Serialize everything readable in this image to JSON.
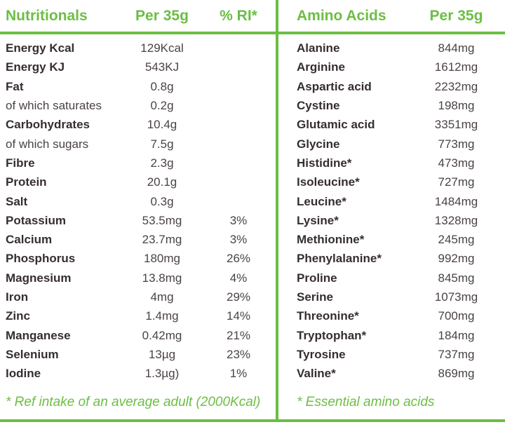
{
  "colors": {
    "accent_green": "#6cbe45",
    "label_text": "#362e2e",
    "value_text": "#4b4343"
  },
  "nutritionals": {
    "title": "Nutritionals",
    "columns": {
      "value": "Per 35g",
      "ri": "% RI*"
    },
    "rows": [
      {
        "label": "Energy Kcal",
        "value": "129Kcal",
        "ri": ""
      },
      {
        "label": "Energy KJ",
        "value": "543KJ",
        "ri": ""
      },
      {
        "label": "Fat",
        "value": "0.8g",
        "ri": ""
      },
      {
        "label": "of which saturates",
        "value": "0.2g",
        "ri": "",
        "muted": true
      },
      {
        "label": "Carbohydrates",
        "value": "10.4g",
        "ri": ""
      },
      {
        "label": "of which sugars",
        "value": "7.5g",
        "ri": "",
        "muted": true
      },
      {
        "label": "Fibre",
        "value": "2.3g",
        "ri": ""
      },
      {
        "label": "Protein",
        "value": "20.1g",
        "ri": ""
      },
      {
        "label": "Salt",
        "value": "0.3g",
        "ri": ""
      },
      {
        "label": "Potassium",
        "value": "53.5mg",
        "ri": "3%"
      },
      {
        "label": "Calcium",
        "value": "23.7mg",
        "ri": "3%"
      },
      {
        "label": "Phosphorus",
        "value": "180mg",
        "ri": "26%"
      },
      {
        "label": "Magnesium",
        "value": "13.8mg",
        "ri": "4%"
      },
      {
        "label": "Iron",
        "value": "4mg",
        "ri": "29%"
      },
      {
        "label": "Zinc",
        "value": "1.4mg",
        "ri": "14%"
      },
      {
        "label": "Manganese",
        "value": "0.42mg",
        "ri": "21%"
      },
      {
        "label": "Selenium",
        "value": "13µg",
        "ri": "23%"
      },
      {
        "label": "Iodine",
        "value": "1.3µg)",
        "ri": "1%"
      }
    ],
    "footnote": "* Ref intake of an average adult (2000Kcal)"
  },
  "amino_acids": {
    "title": "Amino Acids",
    "columns": {
      "value": "Per 35g"
    },
    "rows": [
      {
        "label": "Alanine",
        "value": "844mg"
      },
      {
        "label": "Arginine",
        "value": "1612mg"
      },
      {
        "label": "Aspartic acid",
        "value": "2232mg"
      },
      {
        "label": "Cystine",
        "value": "198mg"
      },
      {
        "label": "Glutamic acid",
        "value": "3351mg"
      },
      {
        "label": "Glycine",
        "value": "773mg"
      },
      {
        "label": "Histidine*",
        "value": "473mg"
      },
      {
        "label": "Isoleucine*",
        "value": "727mg"
      },
      {
        "label": "Leucine*",
        "value": "1484mg"
      },
      {
        "label": "Lysine*",
        "value": "1328mg"
      },
      {
        "label": "Methionine*",
        "value": "245mg"
      },
      {
        "label": "Phenylalanine*",
        "value": "992mg"
      },
      {
        "label": "Proline",
        "value": "845mg"
      },
      {
        "label": "Serine",
        "value": "1073mg"
      },
      {
        "label": "Threonine*",
        "value": "700mg"
      },
      {
        "label": "Tryptophan*",
        "value": "184mg"
      },
      {
        "label": "Tyrosine",
        "value": "737mg"
      },
      {
        "label": "Valine*",
        "value": "869mg"
      }
    ],
    "footnote": "* Essential amino acids"
  }
}
